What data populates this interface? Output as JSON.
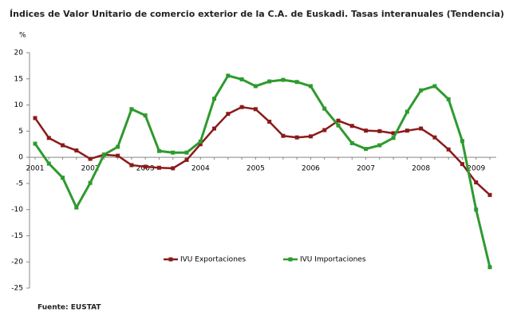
{
  "chart_data": {
    "type": "line",
    "title": "Índices de Valor Unitario de comercio exterior de la C.A. de Euskadi. Tasas interanuales (Tendencia)",
    "y_label": "%",
    "source": "Fuente: EUSTAT",
    "categories": [
      "2001",
      null,
      null,
      null,
      "2002",
      null,
      null,
      null,
      "2003",
      null,
      null,
      null,
      "2004",
      null,
      null,
      null,
      "2005",
      null,
      null,
      null,
      "2006",
      null,
      null,
      null,
      "2007",
      null,
      null,
      null,
      "2008",
      null,
      null,
      null,
      "2009",
      null
    ],
    "series": [
      {
        "name": "IVU Exportaciones",
        "color": "#8b1a1a",
        "values": [
          7.5,
          3.7,
          2.3,
          1.3,
          -0.3,
          0.5,
          0.3,
          -1.5,
          -1.8,
          -2.0,
          -2.1,
          -0.5,
          2.5,
          5.5,
          8.3,
          9.6,
          9.2,
          6.8,
          4.1,
          3.8,
          4.0,
          5.2,
          7.0,
          6.0,
          5.1,
          5.0,
          4.6,
          5.1,
          5.5,
          3.8,
          1.5,
          -1.3,
          -4.8,
          -7.2
        ]
      },
      {
        "name": "IVU Importaciones",
        "color": "#2e9a2e",
        "values": [
          2.6,
          -1.2,
          -3.9,
          -9.6,
          -4.9,
          0.5,
          2.0,
          9.2,
          8.0,
          1.2,
          0.9,
          0.9,
          3.0,
          11.2,
          15.6,
          14.9,
          13.6,
          14.5,
          14.8,
          14.4,
          13.6,
          9.3,
          6.1,
          2.7,
          1.6,
          2.3,
          3.7,
          8.7,
          12.8,
          13.6,
          11.1,
          3.1,
          -10.0,
          -21.0
        ]
      }
    ],
    "ylim": [
      -25,
      20
    ],
    "yticks": [
      -25,
      -20,
      -15,
      -10,
      -5,
      0,
      5,
      10,
      15,
      20
    ],
    "grid": false
  }
}
